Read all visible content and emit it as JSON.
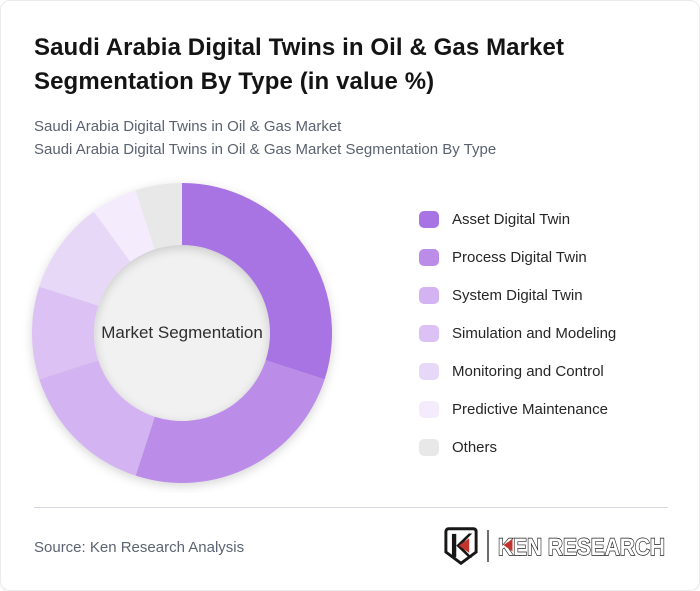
{
  "header": {
    "title_line1": "Saudi Arabia Digital Twins in Oil & Gas Market",
    "title_line2": "Segmentation By Type (in value %)",
    "subtitle_line1": "Saudi Arabia Digital Twins in Oil & Gas Market",
    "subtitle_line2": "Saudi Arabia Digital Twins in Oil & Gas Market Segmentation By Type"
  },
  "chart_data": {
    "type": "pie",
    "subtype": "donut",
    "title": "Saudi Arabia Digital Twins in Oil & Gas Market Segmentation By Type (in value %)",
    "center_label": "Market Segmentation",
    "categories": [
      "Asset Digital Twin",
      "Process Digital Twin",
      "System Digital Twin",
      "Simulation and Modeling",
      "Monitoring and Control",
      "Predictive Maintenance",
      "Others"
    ],
    "values": [
      30,
      25,
      15,
      10,
      10,
      5,
      5
    ],
    "unit": "%",
    "values_note": "percent shares estimated from slice arc angles; no numeric labels shown in chart",
    "colors": [
      "#a873e2",
      "#bb8de9",
      "#d3b3f1",
      "#dcc2f4",
      "#e8d8f8",
      "#f4ecfc",
      "#e8e8e8"
    ],
    "center_circle_color": "#f1f1f1",
    "legend_position": "right",
    "start_angle_deg": 0,
    "direction": "clockwise",
    "outer_radius": 150,
    "inner_radius": 88
  },
  "footer": {
    "source": "Source: Ken Research Analysis",
    "logo_text": "KEN RESEARCH",
    "logo_badge_letter": "K",
    "logo_red": "#c4342f"
  }
}
